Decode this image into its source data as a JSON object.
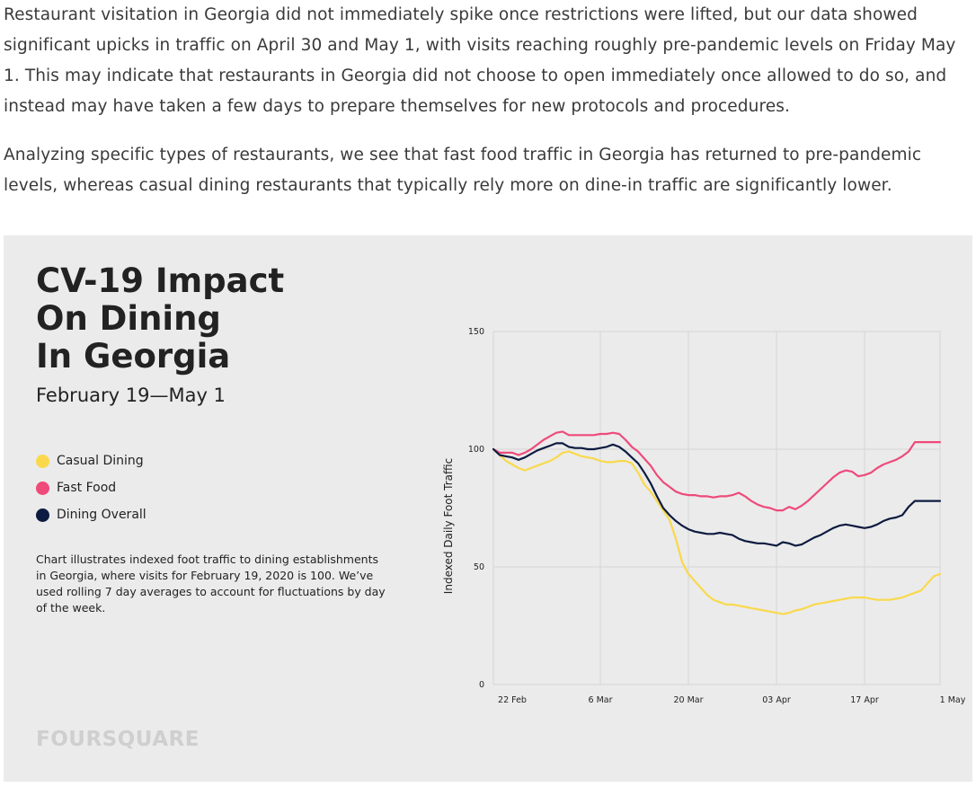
{
  "article": {
    "paragraph1": "Restaurant visitation in Georgia did not immediately spike once restrictions were lifted, but our data showed significant upicks in traffic on April 30 and May 1, with visits reaching roughly pre-pandemic levels on Friday May 1. This may indicate that restaurants in Georgia did not choose to open immediately once allowed to do so, and instead may have taken a few days to prepare themselves for new protocols and procedures.",
    "paragraph2": "Analyzing specific types of restaurants, we see that fast food traffic in Georgia has returned to pre-pandemic levels, whereas casual dining restaurants that typically rely more on dine-in traffic are significantly lower."
  },
  "panel": {
    "title": "CV-19 Impact\nOn Dining\nIn Georgia",
    "subtitle": "February 19—May 1",
    "note": "Chart illustrates indexed foot traffic to dining establishments in Georgia, where visits for February 19, 2020 is 100. We’ve used rolling 7 day averages to account for fluctuations by day of the week.",
    "brand": "FOURSQUARE"
  },
  "colors": {
    "casual": "#f9d94b",
    "fast": "#ee4a7a",
    "overall": "#0d1b40",
    "grid": "#d6d6d6"
  },
  "chart_data": {
    "type": "line",
    "title": "CV-19 Impact On Dining In Georgia",
    "subtitle": "February 19—May 1",
    "ylabel": "Indexed Daily Foot Traffic",
    "xlabel": "",
    "ylim": [
      0,
      150
    ],
    "yticks": [
      0,
      50,
      100,
      150
    ],
    "xtick_labels": [
      "22 Feb",
      "6 Mar",
      "20 Mar",
      "03 Apr",
      "17 Apr",
      "1 May"
    ],
    "xtick_days": [
      3,
      17,
      31,
      45,
      59,
      73
    ],
    "x_start": "2020-02-19",
    "x_end": "2020-05-01",
    "grid": true,
    "legend_position": "left",
    "series": [
      {
        "name": "Casual Dining",
        "color_key": "casual",
        "values": [
          100,
          97.5,
          95,
          93.5,
          92,
          91,
          92,
          93,
          94,
          95,
          96.5,
          98.5,
          99,
          98,
          97,
          96.5,
          96,
          95,
          94.5,
          94.5,
          95,
          95,
          94,
          90,
          85,
          82,
          78,
          74,
          70,
          62,
          52,
          47,
          44,
          41,
          38,
          36,
          35,
          34,
          34,
          33.5,
          33,
          32.5,
          32,
          31.5,
          31,
          30.5,
          30,
          30.5,
          31.5,
          32,
          33,
          34,
          34.5,
          35,
          35.5,
          36,
          36.5,
          37,
          37,
          37,
          36.5,
          36,
          36,
          36,
          36.5,
          37,
          38,
          39,
          40,
          43,
          46,
          47
        ]
      },
      {
        "name": "Fast Food",
        "color_key": "fast",
        "values": [
          100,
          98.5,
          98.5,
          98.5,
          97.5,
          98.5,
          100,
          102,
          104,
          105.5,
          107,
          107.5,
          106,
          106,
          106,
          106,
          106,
          106.5,
          106.5,
          107,
          106.5,
          104,
          101,
          99,
          96,
          93,
          89,
          86,
          84,
          82,
          81,
          80.5,
          80.5,
          80,
          80,
          79.5,
          80,
          80,
          80.5,
          81.5,
          80,
          78,
          76.5,
          75.5,
          75,
          74,
          74,
          75.5,
          74.5,
          76,
          78,
          80.5,
          83,
          85.5,
          88,
          90,
          91,
          90.5,
          88.5,
          89,
          90,
          92,
          93.5,
          94.5,
          95.5,
          97,
          99,
          103,
          103,
          103,
          103,
          103
        ]
      },
      {
        "name": "Dining Overall",
        "color_key": "overall",
        "values": [
          100,
          97.5,
          97,
          96.5,
          95.5,
          96.5,
          98,
          99.5,
          100.5,
          101.5,
          102.5,
          102.5,
          101,
          100.5,
          100.5,
          100,
          100,
          100.5,
          101,
          102,
          101,
          99,
          96.5,
          94,
          90,
          85.5,
          80,
          75,
          72,
          69.5,
          67.5,
          66,
          65,
          64.5,
          64,
          64,
          64.5,
          64,
          63.5,
          62,
          61,
          60.5,
          60,
          60,
          59.5,
          59,
          60.5,
          60,
          59,
          59.5,
          61,
          62.5,
          63.5,
          65,
          66.5,
          67.5,
          68,
          67.5,
          67,
          66.5,
          67,
          68,
          69.5,
          70.5,
          71,
          72,
          75.5,
          78,
          78,
          78,
          78,
          78
        ]
      }
    ]
  }
}
